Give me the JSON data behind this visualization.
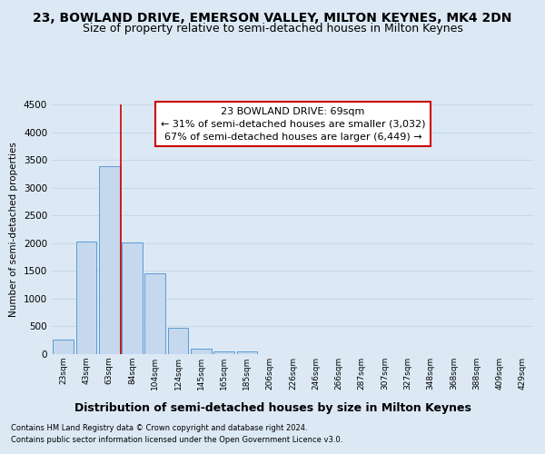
{
  "title": "23, BOWLAND DRIVE, EMERSON VALLEY, MILTON KEYNES, MK4 2DN",
  "subtitle": "Size of property relative to semi-detached houses in Milton Keynes",
  "xlabel": "Distribution of semi-detached houses by size in Milton Keynes",
  "ylabel": "Number of semi-detached properties",
  "footnote1": "Contains HM Land Registry data © Crown copyright and database right 2024.",
  "footnote2": "Contains public sector information licensed under the Open Government Licence v3.0.",
  "bar_labels": [
    "23sqm",
    "43sqm",
    "63sqm",
    "84sqm",
    "104sqm",
    "124sqm",
    "145sqm",
    "165sqm",
    "185sqm",
    "206sqm",
    "226sqm",
    "246sqm",
    "266sqm",
    "287sqm",
    "307sqm",
    "327sqm",
    "348sqm",
    "368sqm",
    "388sqm",
    "409sqm",
    "429sqm"
  ],
  "bar_values": [
    255,
    2030,
    3380,
    2010,
    1460,
    480,
    105,
    55,
    50,
    0,
    0,
    0,
    0,
    0,
    0,
    0,
    0,
    0,
    0,
    0,
    0
  ],
  "bar_color": "#c5d8ed",
  "bar_edge_color": "#5b9bd5",
  "vline_x": 2.5,
  "vline_color": "#cc0000",
  "annot_line1": "23 BOWLAND DRIVE: 69sqm",
  "annot_line2": "← 31% of semi-detached houses are smaller (3,032)",
  "annot_line3": "67% of semi-detached houses are larger (6,449) →",
  "annot_facecolor": "#ffffff",
  "annot_edgecolor": "#cc0000",
  "ylim": [
    0,
    4500
  ],
  "yticks": [
    0,
    500,
    1000,
    1500,
    2000,
    2500,
    3000,
    3500,
    4000,
    4500
  ],
  "bg_color": "#dce9f5",
  "grid_color": "#c8d8e8",
  "title_fontsize": 10,
  "subtitle_fontsize": 9,
  "xlabel_fontsize": 9,
  "ylabel_fontsize": 7.5,
  "tick_fontsize": 6.5,
  "ytick_fontsize": 7.5,
  "annot_fontsize": 8,
  "footnote_fontsize": 6
}
